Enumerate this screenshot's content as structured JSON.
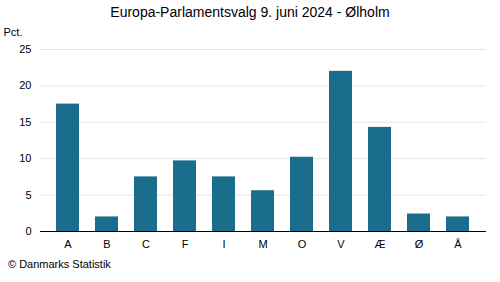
{
  "chart_data": {
    "type": "bar",
    "title": "Europa-Parlamentsvalg 9. juni 2024 - Ølholm",
    "categories": [
      "A",
      "B",
      "C",
      "F",
      "I",
      "M",
      "O",
      "V",
      "Æ",
      "Ø",
      "Å"
    ],
    "values": [
      17.5,
      2.0,
      7.5,
      9.7,
      7.5,
      5.6,
      10.2,
      22.0,
      14.3,
      2.4,
      2.0
    ],
    "color": "#1a6e8c",
    "ylabel": "Pct.",
    "caption": "© Danmarks Statistik",
    "ylim": [
      0,
      25
    ],
    "yticks": [
      0,
      5,
      10,
      15,
      20,
      25
    ],
    "grid": true
  }
}
